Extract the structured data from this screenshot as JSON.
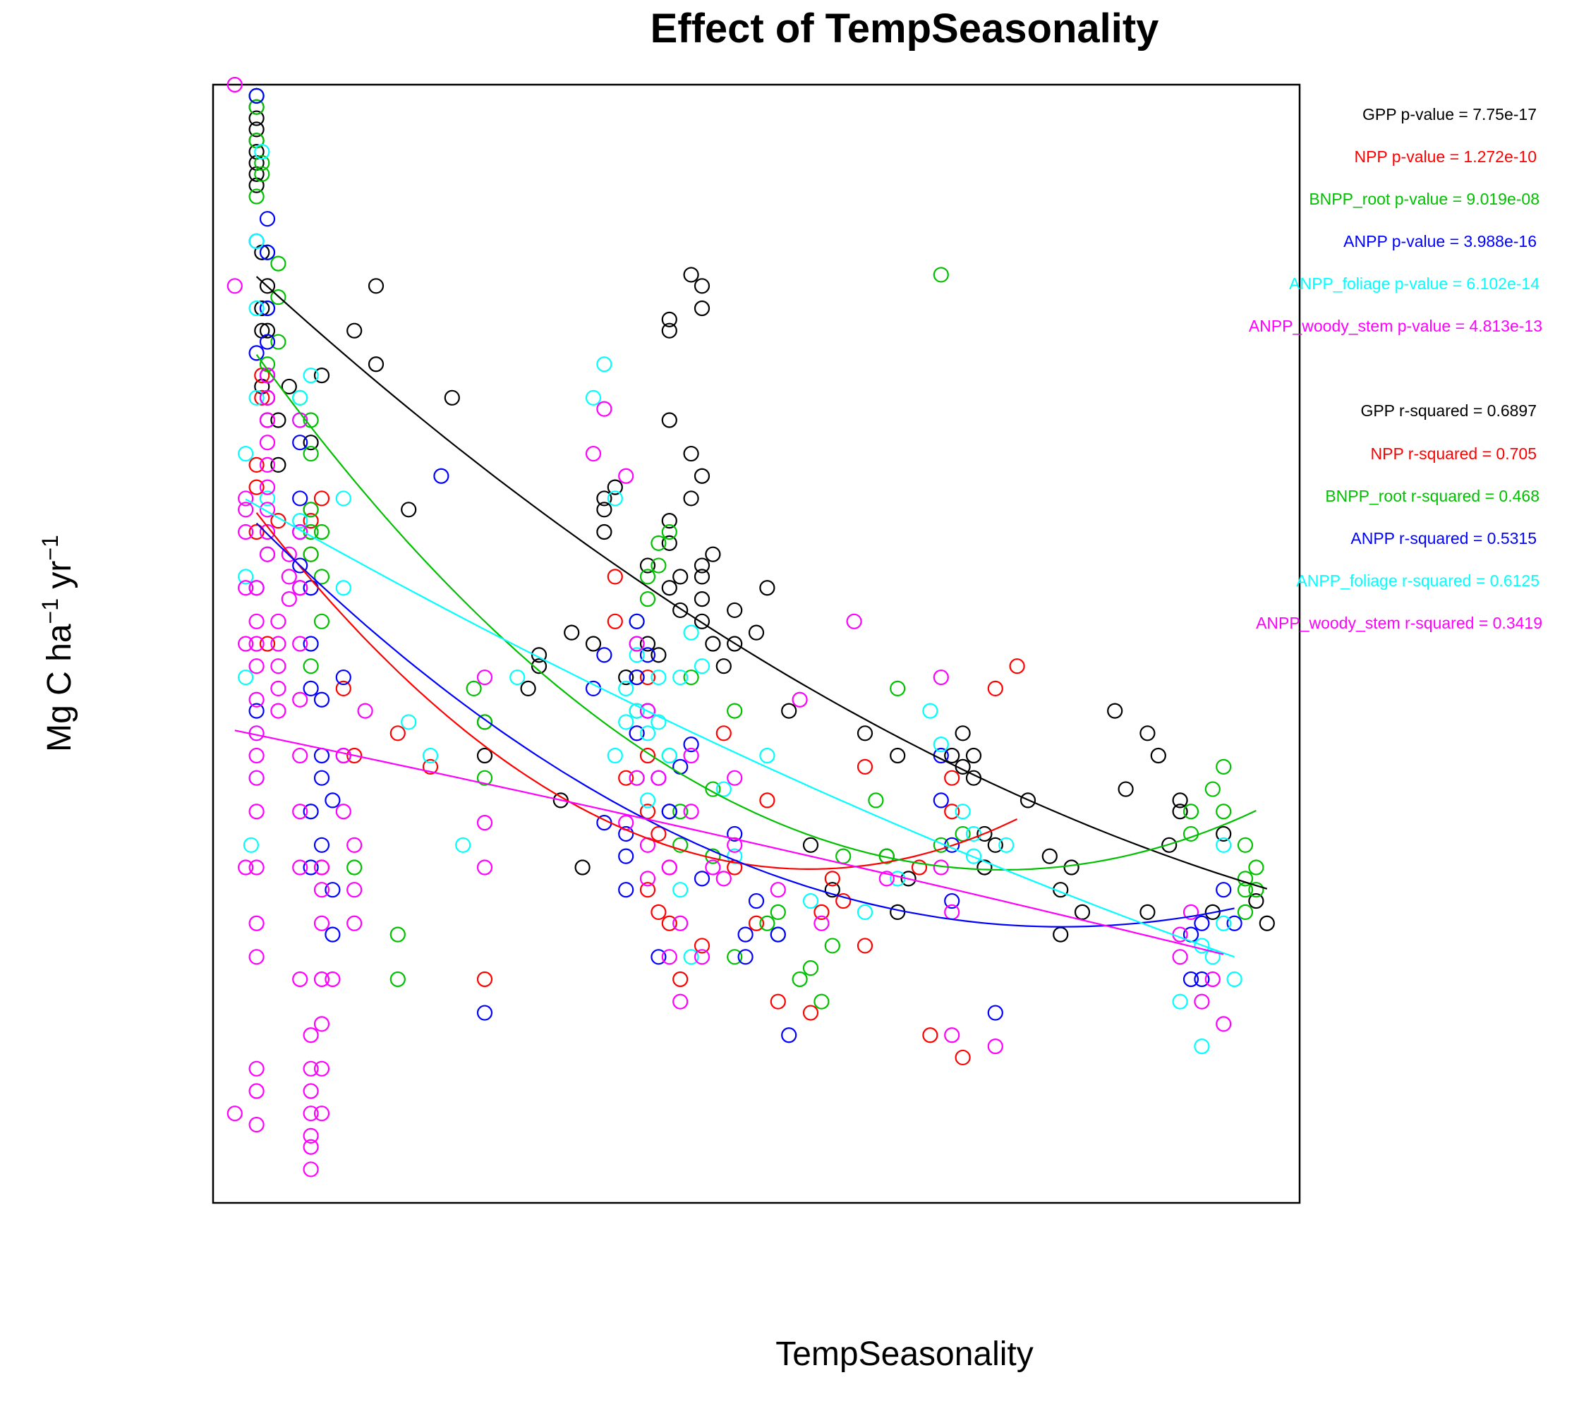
{
  "chart_data": {
    "type": "scatter",
    "title": "Effect of TempSeasonality",
    "xlabel": "TempSeasonality",
    "ylabel_parts": {
      "base": "Mg C ha",
      "sup1": "−1",
      "mid": " yr",
      "sup2": "−1"
    },
    "xlim": [
      0,
      100
    ],
    "ylim": [
      0,
      100
    ],
    "axis_ticks_shown": false,
    "grid": false,
    "stats_placement": "right",
    "series": [
      {
        "name": "GPP",
        "color": "#000000",
        "pvalue_text": "GPP p-value =  7.75e-17",
        "rsq_text": "GPP r-squared =  0.6897",
        "x": [
          4,
          4,
          4,
          4,
          4,
          4,
          4,
          4,
          4,
          4.5,
          4.5,
          4.5,
          4.5,
          5,
          5,
          5,
          5,
          5,
          6,
          6,
          7,
          9,
          10,
          13,
          15,
          15,
          22,
          18,
          25,
          25,
          32,
          34,
          35,
          38,
          40,
          41,
          39,
          29,
          30,
          30,
          33,
          36,
          36,
          37,
          36,
          40,
          42,
          42,
          45,
          45,
          45,
          45,
          43,
          44,
          42,
          42,
          45,
          45,
          44,
          48,
          45,
          46,
          43,
          46,
          42,
          44,
          42,
          51,
          50,
          53,
          47,
          48,
          57,
          55,
          60,
          63,
          64,
          62,
          63,
          75,
          72,
          68,
          69,
          69,
          70,
          70,
          71,
          71,
          83,
          87,
          86,
          79,
          80,
          88,
          97,
          96,
          92,
          93,
          78,
          77,
          78,
          86,
          84,
          89,
          89
        ],
        "y": [
          91,
          92,
          93,
          94,
          95,
          96,
          97,
          98,
          99,
          73,
          78,
          80,
          85,
          70,
          72,
          74,
          78,
          82,
          66,
          70,
          73,
          68,
          74,
          78,
          75,
          82,
          72,
          62,
          43,
          40,
          36,
          30,
          50,
          47,
          50,
          49,
          47,
          46,
          48,
          49,
          51,
          62,
          63,
          64,
          60,
          57,
          59,
          55,
          57,
          56,
          54,
          65,
          53,
          67,
          79,
          78,
          80,
          82,
          83,
          53,
          52,
          50,
          56,
          58,
          61,
          63,
          70,
          55,
          51,
          44,
          48,
          50,
          28,
          32,
          42,
          40,
          29,
          31,
          26,
          36,
          32,
          40,
          39,
          42,
          38,
          40,
          30,
          33,
          44,
          40,
          42,
          30,
          26,
          32,
          25,
          27,
          26,
          33,
          24,
          31,
          28,
          26,
          37,
          36,
          35
        ]
      },
      {
        "name": "NPP",
        "color": "#ff0000",
        "pvalue_text": "NPP p-value =  1.272e-10",
        "rsq_text": "NPP r-squared =  0.705",
        "x": [
          4,
          4,
          4,
          4.5,
          4.5,
          5,
          5,
          6,
          9,
          9,
          9,
          10,
          10,
          13,
          12,
          17,
          20,
          25,
          37,
          37,
          39,
          39,
          40,
          40,
          39,
          40,
          41,
          38,
          40,
          42,
          42,
          43,
          41,
          47,
          48,
          50,
          51,
          45,
          52,
          56,
          57,
          58,
          55,
          60,
          65,
          68,
          68,
          60,
          66,
          69,
          72,
          74
        ],
        "y": [
          60,
          64,
          66,
          72,
          74,
          50,
          58,
          61,
          62,
          58,
          61,
          63,
          30,
          40,
          46,
          42,
          39,
          20,
          56,
          52,
          42,
          44,
          47,
          40,
          38,
          35,
          33,
          38,
          28,
          30,
          25,
          20,
          26,
          42,
          30,
          25,
          36,
          23,
          18,
          26,
          29,
          27,
          17,
          39,
          30,
          35,
          38,
          23,
          15,
          13,
          46,
          48
        ]
      },
      {
        "name": "BNPP_root",
        "color": "#00c000",
        "pvalue_text": "BNPP_root p-value =  9.019e-08",
        "rsq_text": "BNPP_root r-squared =  0.468",
        "x": [
          4,
          4,
          4,
          4,
          4.5,
          4.5,
          5,
          5,
          5,
          6,
          6,
          6,
          8,
          9,
          9,
          9,
          9,
          9,
          9,
          10,
          10,
          10,
          13,
          17,
          17,
          24,
          25,
          25,
          39,
          39,
          40,
          40,
          41,
          41,
          42,
          42,
          43,
          43,
          44,
          46,
          48,
          46,
          48,
          52,
          54,
          55,
          56,
          52,
          51,
          57,
          58,
          61,
          62,
          67,
          63,
          67,
          69,
          90,
          90,
          93,
          93,
          92,
          96,
          95,
          95,
          95,
          96,
          95
        ],
        "y": [
          99,
          98,
          95,
          90,
          92,
          93,
          80,
          85,
          75,
          84,
          81,
          77,
          72,
          70,
          67,
          60,
          62,
          48,
          58,
          60,
          56,
          52,
          30,
          20,
          24,
          46,
          38,
          43,
          50,
          52,
          54,
          56,
          57,
          59,
          60,
          40,
          35,
          32,
          47,
          31,
          22,
          37,
          44,
          24,
          20,
          21,
          18,
          26,
          25,
          23,
          31,
          36,
          31,
          83,
          46,
          32,
          33,
          33,
          35,
          35,
          39,
          37,
          28,
          26,
          28,
          29,
          30,
          32
        ]
      },
      {
        "name": "ANPP",
        "color": "#0000ff",
        "pvalue_text": "ANPP p-value =  3.988e-16",
        "rsq_text": "ANPP r-squared =  0.5315",
        "x": [
          4,
          4,
          4,
          4,
          4,
          5,
          5,
          5,
          5,
          5,
          8,
          8,
          8,
          8,
          8,
          9,
          9,
          9,
          9,
          9,
          10,
          10,
          10,
          10,
          11,
          11,
          11,
          12,
          12,
          21,
          25,
          35,
          36,
          36,
          38,
          38,
          38,
          39,
          39,
          40,
          39,
          40,
          41,
          42,
          43,
          44,
          41,
          42,
          45,
          48,
          49,
          50,
          49,
          52,
          53,
          67,
          67,
          68,
          68,
          72,
          90,
          90,
          91,
          91,
          93,
          94
        ],
        "y": [
          99,
          86,
          76,
          55,
          44,
          88,
          85,
          80,
          77,
          74,
          68,
          63,
          60,
          57,
          55,
          55,
          50,
          46,
          35,
          30,
          45,
          40,
          38,
          32,
          36,
          24,
          28,
          40,
          47,
          65,
          17,
          46,
          49,
          34,
          31,
          28,
          33,
          42,
          47,
          44,
          52,
          49,
          38,
          35,
          39,
          41,
          22,
          35,
          29,
          33,
          22,
          27,
          24,
          24,
          15,
          36,
          40,
          32,
          27,
          17,
          20,
          24,
          20,
          25,
          28,
          25
        ]
      },
      {
        "name": "ANPP_foliage",
        "color": "#00ffff",
        "pvalue_text": "ANPP_foliage p-value =  6.102e-14",
        "rsq_text": "ANPP_foliage r-squared =  0.6125",
        "x": [
          3,
          3,
          3,
          3.5,
          4,
          4,
          4.5,
          4,
          4,
          4,
          5,
          5,
          5,
          8,
          8,
          8,
          9,
          12,
          12,
          18,
          20,
          23,
          28,
          35,
          36,
          37,
          38,
          37,
          38,
          39,
          39,
          39,
          40,
          40,
          41,
          41,
          42,
          43,
          44,
          43,
          44,
          45,
          47,
          48,
          51,
          55,
          60,
          63,
          66,
          67,
          70,
          70,
          69,
          73,
          89,
          91,
          91,
          92,
          93,
          94,
          93
        ],
        "y": [
          67,
          56,
          47,
          32,
          38,
          42,
          94,
          80,
          72,
          86,
          58,
          60,
          63,
          61,
          70,
          72,
          74,
          55,
          63,
          43,
          40,
          32,
          47,
          72,
          75,
          63,
          46,
          40,
          43,
          38,
          49,
          44,
          36,
          42,
          47,
          43,
          40,
          28,
          22,
          47,
          51,
          48,
          37,
          31,
          40,
          27,
          26,
          29,
          44,
          41,
          31,
          33,
          35,
          32,
          18,
          14,
          23,
          22,
          25,
          20,
          32
        ]
      },
      {
        "name": "ANPP_woody_stem",
        "color": "#ff00ff",
        "pvalue_text": "ANPP_woody_stem p-value =  4.813e-13",
        "rsq_text": "ANPP_woody_stem r-squared =  0.3419",
        "x": [
          2,
          2,
          2,
          3,
          3,
          3,
          3,
          3,
          3,
          4,
          4,
          4,
          4,
          4,
          4,
          4,
          4,
          4,
          4,
          4,
          4,
          4,
          4,
          4,
          5,
          5,
          5,
          5,
          5,
          5,
          5,
          5,
          5,
          6,
          6,
          6,
          6,
          6,
          7,
          7,
          7,
          8,
          8,
          8,
          8,
          8,
          8,
          8,
          8,
          8,
          9,
          9,
          9,
          9,
          9,
          9,
          9,
          10,
          10,
          10,
          10,
          10,
          10,
          10,
          11,
          12,
          12,
          13,
          13,
          13,
          14,
          25,
          25,
          25,
          35,
          36,
          38,
          38,
          39,
          39,
          40,
          40,
          40,
          41,
          42,
          42,
          43,
          43,
          44,
          44,
          45,
          46,
          47,
          48,
          48,
          52,
          54,
          56,
          59,
          62,
          67,
          68,
          67,
          68,
          72,
          89,
          89,
          90,
          91,
          92,
          93
        ],
        "y": [
          100,
          82,
          8,
          60,
          62,
          63,
          55,
          50,
          30,
          7,
          10,
          12,
          22,
          25,
          30,
          35,
          38,
          40,
          42,
          45,
          48,
          50,
          52,
          55,
          58,
          60,
          62,
          64,
          66,
          68,
          70,
          72,
          74,
          44,
          46,
          48,
          50,
          52,
          54,
          56,
          58,
          70,
          60,
          55,
          50,
          45,
          40,
          35,
          30,
          20,
          15,
          12,
          10,
          8,
          6,
          5,
          3,
          28,
          30,
          25,
          20,
          16,
          12,
          8,
          20,
          35,
          40,
          32,
          28,
          25,
          44,
          47,
          30,
          34,
          67,
          71,
          65,
          34,
          38,
          50,
          32,
          29,
          44,
          38,
          30,
          22,
          25,
          18,
          40,
          35,
          22,
          30,
          29,
          38,
          32,
          28,
          45,
          25,
          52,
          29,
          47,
          26,
          30,
          15,
          14,
          22,
          24,
          26,
          18,
          20,
          16
        ]
      }
    ]
  }
}
